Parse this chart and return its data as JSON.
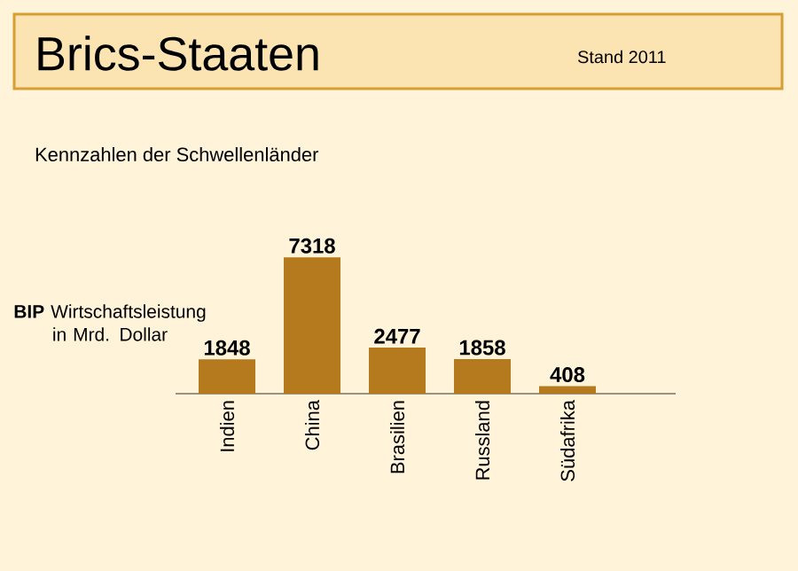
{
  "chart_data": {
    "type": "bar",
    "title": "Brics-Staaten",
    "subtitle": "Kennzahlen der Schwellenländer",
    "annotations": [
      "Stand 2011"
    ],
    "ylabel": "**BIP** Wirtschaftsleistung in Mrd. Dollar",
    "categories": [
      "Indien",
      "China",
      "Brasilien",
      "Russland",
      "Südafrika"
    ],
    "values": [
      1848,
      7318,
      2477,
      1858,
      408
    ],
    "color": "#b67a1e",
    "data_labels": true
  }
}
